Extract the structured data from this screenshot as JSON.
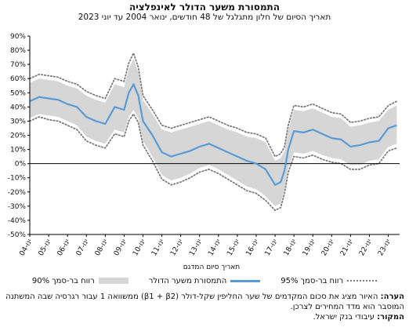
{
  "header": {
    "title": "התמסורת משער הדולר לאינפלציה",
    "subtitle": "תאריך הסיום של חלון מתגלגל של 48 חודשים, ינואר 2004 עד יוני 2023"
  },
  "chart_data": {
    "type": "line",
    "xlabel": "תאריך סיום המדגם",
    "ylabel": "",
    "ylim": [
      -50,
      90
    ],
    "yticks": [
      "90%",
      "80%",
      "70%",
      "60%",
      "50%",
      "40%",
      "30%",
      "20%",
      "10%",
      "0%",
      "-10%",
      "-20%",
      "-30%",
      "-40%",
      "-50%"
    ],
    "ytick_values": [
      90,
      80,
      70,
      60,
      50,
      40,
      30,
      20,
      10,
      0,
      -10,
      -20,
      -30,
      -40,
      -50
    ],
    "xticks": [
      "ינו-04",
      "ינו-05",
      "ינו-06",
      "ינו-07",
      "ינו-08",
      "ינו-09",
      "ינו-10",
      "ינו-11",
      "ינו-12",
      "ינו-13",
      "ינו-14",
      "ינו-15",
      "ינו-16",
      "ינו-17",
      "ינו-18",
      "ינו-19",
      "ינו-20",
      "ינו-21",
      "ינו-22",
      "ינו-23"
    ],
    "xtick_years": [
      2004,
      2005,
      2006,
      2007,
      2008,
      2009,
      2010,
      2011,
      2012,
      2013,
      2014,
      2015,
      2016,
      2017,
      2018,
      2019,
      2020,
      2021,
      2022,
      2023
    ],
    "grid": false,
    "legend_position": "bottom",
    "series": [
      {
        "name": "התמסורת משער הדולר",
        "style": "solid",
        "color": "#5b9bd5",
        "x": [
          2004.0,
          2004.5,
          2005.0,
          2005.5,
          2006.0,
          2006.5,
          2007.0,
          2007.5,
          2008.0,
          2008.5,
          2009.0,
          2009.25,
          2009.5,
          2009.75,
          2010.0,
          2010.5,
          2011.0,
          2011.5,
          2012.0,
          2012.5,
          2013.0,
          2013.5,
          2014.0,
          2014.5,
          2015.0,
          2015.5,
          2016.0,
          2016.5,
          2017.0,
          2017.3,
          2017.5,
          2017.7,
          2018.0,
          2018.5,
          2019.0,
          2019.5,
          2020.0,
          2020.5,
          2021.0,
          2021.5,
          2022.0,
          2022.5,
          2023.0,
          2023.45
        ],
        "y": [
          44,
          47,
          46,
          45,
          42,
          40,
          33,
          30,
          28,
          40,
          38,
          50,
          56,
          48,
          30,
          20,
          8,
          5,
          7,
          9,
          12,
          14,
          11,
          8,
          5,
          2,
          0,
          -4,
          -15,
          -13,
          -5,
          10,
          23,
          22,
          24,
          21,
          18,
          17,
          12,
          13,
          15,
          16,
          25,
          27
        ]
      },
      {
        "name": "רווח בר-סמך 90%",
        "style": "band",
        "color": "#d6d6d6",
        "x": [
          2004.0,
          2004.5,
          2005.0,
          2005.5,
          2006.0,
          2006.5,
          2007.0,
          2007.5,
          2008.0,
          2008.5,
          2009.0,
          2009.25,
          2009.5,
          2009.75,
          2010.0,
          2010.5,
          2011.0,
          2011.5,
          2012.0,
          2012.5,
          2013.0,
          2013.5,
          2014.0,
          2014.5,
          2015.0,
          2015.5,
          2016.0,
          2016.5,
          2017.0,
          2017.3,
          2017.5,
          2017.7,
          2018.0,
          2018.5,
          2019.0,
          2019.5,
          2020.0,
          2020.5,
          2021.0,
          2021.5,
          2022.0,
          2022.5,
          2023.0,
          2023.45
        ],
        "lower": [
          32,
          35,
          34,
          33,
          30,
          27,
          19,
          16,
          14,
          24,
          22,
          33,
          38,
          32,
          16,
          5,
          -8,
          -12,
          -10,
          -7,
          -3,
          -1,
          -4,
          -8,
          -12,
          -16,
          -18,
          -23,
          -30,
          -28,
          -18,
          -3,
          8,
          7,
          9,
          6,
          4,
          3,
          -1,
          -1,
          2,
          3,
          12,
          14
        ],
        "upper": [
          57,
          60,
          59,
          58,
          55,
          53,
          48,
          45,
          43,
          56,
          54,
          67,
          74,
          65,
          45,
          35,
          24,
          22,
          24,
          26,
          28,
          30,
          27,
          24,
          22,
          19,
          18,
          15,
          2,
          4,
          9,
          24,
          38,
          37,
          39,
          36,
          33,
          32,
          26,
          27,
          29,
          30,
          38,
          41
        ]
      },
      {
        "name": "רווח בר-סמך 95%",
        "style": "dotted",
        "color": "#7a7a7a",
        "x": [
          2004.0,
          2004.5,
          2005.0,
          2005.5,
          2006.0,
          2006.5,
          2007.0,
          2007.5,
          2008.0,
          2008.5,
          2009.0,
          2009.25,
          2009.5,
          2009.75,
          2010.0,
          2010.5,
          2011.0,
          2011.5,
          2012.0,
          2012.5,
          2013.0,
          2013.5,
          2014.0,
          2014.5,
          2015.0,
          2015.5,
          2016.0,
          2016.5,
          2017.0,
          2017.3,
          2017.5,
          2017.7,
          2018.0,
          2018.5,
          2019.0,
          2019.5,
          2020.0,
          2020.5,
          2021.0,
          2021.5,
          2022.0,
          2022.5,
          2023.0,
          2023.45
        ],
        "lower": [
          30,
          33,
          31,
          30,
          27,
          24,
          16,
          13,
          11,
          21,
          19,
          30,
          35,
          29,
          13,
          2,
          -11,
          -15,
          -13,
          -10,
          -6,
          -4,
          -7,
          -11,
          -15,
          -19,
          -21,
          -26,
          -33,
          -31,
          -21,
          -6,
          5,
          4,
          6,
          3,
          1,
          0,
          -4,
          -4,
          -1,
          0,
          9,
          11
        ],
        "upper": [
          60,
          63,
          62,
          61,
          58,
          56,
          51,
          48,
          46,
          60,
          58,
          71,
          78,
          68,
          48,
          38,
          27,
          25,
          27,
          29,
          31,
          33,
          30,
          27,
          25,
          22,
          21,
          18,
          5,
          7,
          12,
          27,
          41,
          40,
          42,
          39,
          36,
          35,
          29,
          30,
          32,
          33,
          41,
          44
        ]
      }
    ]
  },
  "legend": {
    "band_label": "רווח בר-סמך 90%",
    "line_label": "התמסורת משער הדולר",
    "dotted_label": "רווח בר-סמך 95%"
  },
  "notes": {
    "note_label": "הערה:",
    "note_line1": "האיור מציג את סכום המקדמים של שער החליפין שקל-דולר (β1 + β2) ממשוואה 1 עבור רגרסיה שבה המשתנה",
    "note_line2": "המוסבר הוא מדד המחירים לצרכן.",
    "source_label": "המקור:",
    "source_text": "עיבודי בנק ישראל."
  }
}
